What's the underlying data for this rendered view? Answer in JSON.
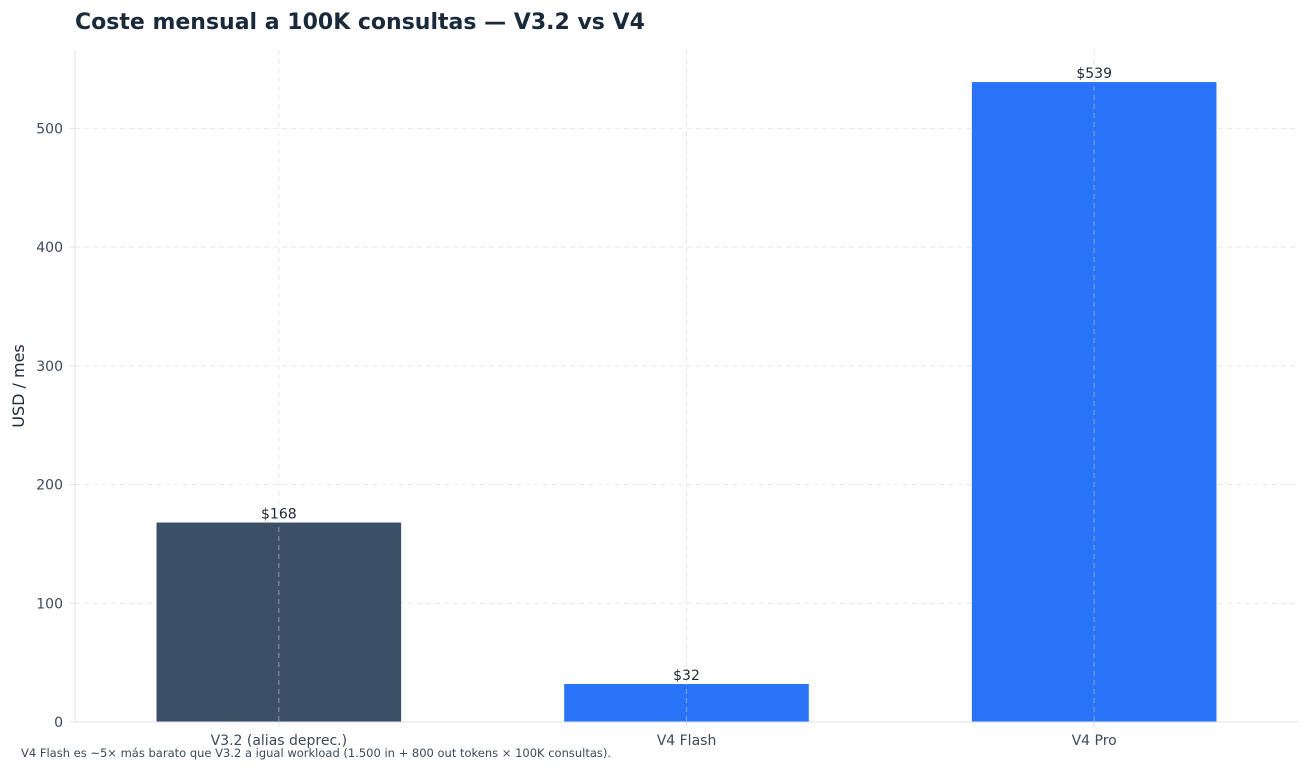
{
  "chart_data": {
    "type": "bar",
    "title": "Coste mensual a 100K consultas — V3.2 vs V4",
    "ylabel": "USD / mes",
    "xlabel": "",
    "categories": [
      "V3.2 (alias deprec.)",
      "V4 Flash",
      "V4 Pro"
    ],
    "values": [
      168,
      32,
      539
    ],
    "value_labels": [
      "$168",
      "$32",
      "$539"
    ],
    "colors": [
      "#3b4f66",
      "#2873f7",
      "#2873f7"
    ],
    "ylim": [
      0,
      566
    ],
    "yticks": [
      0,
      100,
      200,
      300,
      400,
      500
    ],
    "grid": true,
    "legend": "none"
  },
  "footnote": "V4 Flash es ~5× más barato que V3.2 a igual workload (1.500 in + 800 out tokens × 100K consultas)."
}
